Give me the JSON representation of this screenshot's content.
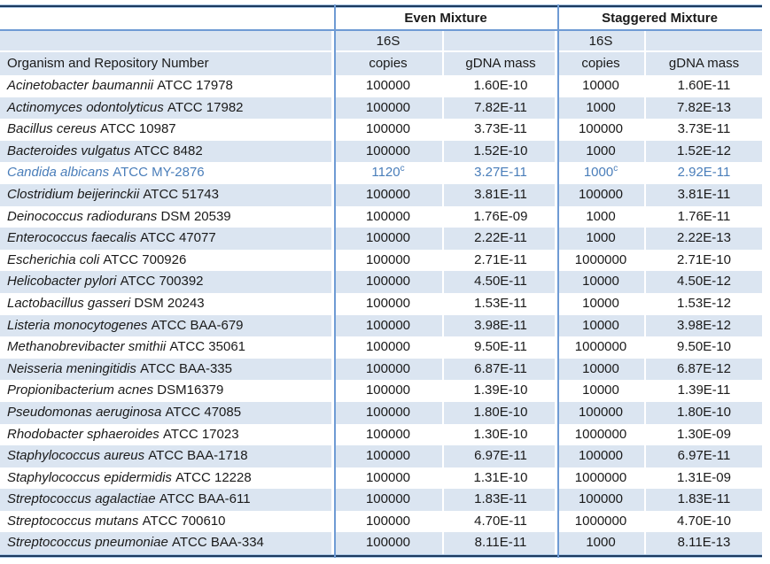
{
  "table": {
    "headers": {
      "even_mixture": "Even Mixture",
      "staggered_mixture": "Staggered Mixture",
      "s16": "16S",
      "copies": "copies",
      "gdna": "gDNA mass",
      "organism": "Organism and Repository Number"
    },
    "rows": [
      {
        "organism": "Acinetobacter baumannii",
        "repository": "ATCC 17978",
        "even_copies": "100000",
        "even_copies_note": "",
        "even_gdna": "1.60E-10",
        "stag_copies": "10000",
        "stag_copies_note": "",
        "stag_gdna": "1.60E-11",
        "highlight": false
      },
      {
        "organism": "Actinomyces odontolyticus",
        "repository": "ATCC 17982",
        "even_copies": "100000",
        "even_copies_note": "",
        "even_gdna": "7.82E-11",
        "stag_copies": "1000",
        "stag_copies_note": "",
        "stag_gdna": "7.82E-13",
        "highlight": false
      },
      {
        "organism": "Bacillus cereus",
        "repository": "ATCC 10987",
        "even_copies": "100000",
        "even_copies_note": "",
        "even_gdna": "3.73E-11",
        "stag_copies": "100000",
        "stag_copies_note": "",
        "stag_gdna": "3.73E-11",
        "highlight": false
      },
      {
        "organism": "Bacteroides vulgatus",
        "repository": "ATCC 8482",
        "even_copies": "100000",
        "even_copies_note": "",
        "even_gdna": "1.52E-10",
        "stag_copies": "1000",
        "stag_copies_note": "",
        "stag_gdna": "1.52E-12",
        "highlight": false
      },
      {
        "organism": "Candida albicans",
        "repository": "ATCC MY-2876",
        "even_copies": "1120",
        "even_copies_note": "c",
        "even_gdna": "3.27E-11",
        "stag_copies": "1000",
        "stag_copies_note": "c",
        "stag_gdna": "2.92E-11",
        "highlight": true
      },
      {
        "organism": "Clostridium beijerinckii",
        "repository": "ATCC 51743",
        "even_copies": "100000",
        "even_copies_note": "",
        "even_gdna": "3.81E-11",
        "stag_copies": "100000",
        "stag_copies_note": "",
        "stag_gdna": "3.81E-11",
        "highlight": false
      },
      {
        "organism": "Deinococcus radiodurans",
        "repository": "DSM 20539",
        "even_copies": "100000",
        "even_copies_note": "",
        "even_gdna": "1.76E-09",
        "stag_copies": "1000",
        "stag_copies_note": "",
        "stag_gdna": "1.76E-11",
        "highlight": false
      },
      {
        "organism": "Enterococcus faecalis",
        "repository": "ATCC 47077",
        "even_copies": "100000",
        "even_copies_note": "",
        "even_gdna": "2.22E-11",
        "stag_copies": "1000",
        "stag_copies_note": "",
        "stag_gdna": "2.22E-13",
        "highlight": false
      },
      {
        "organism": "Escherichia coli",
        "repository": "ATCC 700926",
        "even_copies": "100000",
        "even_copies_note": "",
        "even_gdna": "2.71E-11",
        "stag_copies": "1000000",
        "stag_copies_note": "",
        "stag_gdna": "2.71E-10",
        "highlight": false
      },
      {
        "organism": "Helicobacter pylori",
        "repository": "ATCC 700392",
        "even_copies": "100000",
        "even_copies_note": "",
        "even_gdna": "4.50E-11",
        "stag_copies": "10000",
        "stag_copies_note": "",
        "stag_gdna": "4.50E-12",
        "highlight": false
      },
      {
        "organism": "Lactobacillus gasseri",
        "repository": "DSM 20243",
        "even_copies": "100000",
        "even_copies_note": "",
        "even_gdna": "1.53E-11",
        "stag_copies": "10000",
        "stag_copies_note": "",
        "stag_gdna": "1.53E-12",
        "highlight": false
      },
      {
        "organism": "Listeria monocytogenes",
        "repository": "ATCC BAA-679",
        "even_copies": "100000",
        "even_copies_note": "",
        "even_gdna": "3.98E-11",
        "stag_copies": "10000",
        "stag_copies_note": "",
        "stag_gdna": "3.98E-12",
        "highlight": false
      },
      {
        "organism": "Methanobrevibacter smithii",
        "repository": "ATCC 35061",
        "even_copies": "100000",
        "even_copies_note": "",
        "even_gdna": "9.50E-11",
        "stag_copies": "1000000",
        "stag_copies_note": "",
        "stag_gdna": "9.50E-10",
        "highlight": false
      },
      {
        "organism": "Neisseria meningitidis",
        "repository": "ATCC BAA-335",
        "even_copies": "100000",
        "even_copies_note": "",
        "even_gdna": "6.87E-11",
        "stag_copies": "10000",
        "stag_copies_note": "",
        "stag_gdna": "6.87E-12",
        "highlight": false
      },
      {
        "organism": "Propionibacterium acnes",
        "repository": "DSM16379",
        "even_copies": "100000",
        "even_copies_note": "",
        "even_gdna": "1.39E-10",
        "stag_copies": "10000",
        "stag_copies_note": "",
        "stag_gdna": "1.39E-11",
        "highlight": false
      },
      {
        "organism": "Pseudomonas aeruginosa",
        "repository": "ATCC 47085",
        "even_copies": "100000",
        "even_copies_note": "",
        "even_gdna": "1.80E-10",
        "stag_copies": "100000",
        "stag_copies_note": "",
        "stag_gdna": "1.80E-10",
        "highlight": false
      },
      {
        "organism": "Rhodobacter sphaeroides",
        "repository": "ATCC 17023",
        "even_copies": "100000",
        "even_copies_note": "",
        "even_gdna": "1.30E-10",
        "stag_copies": "1000000",
        "stag_copies_note": "",
        "stag_gdna": "1.30E-09",
        "highlight": false
      },
      {
        "organism": "Staphylococcus aureus",
        "repository": "ATCC BAA-1718",
        "even_copies": "100000",
        "even_copies_note": "",
        "even_gdna": "6.97E-11",
        "stag_copies": "100000",
        "stag_copies_note": "",
        "stag_gdna": "6.97E-11",
        "highlight": false
      },
      {
        "organism": "Staphylococcus epidermidis",
        "repository": "ATCC 12228",
        "even_copies": "100000",
        "even_copies_note": "",
        "even_gdna": "1.31E-10",
        "stag_copies": "1000000",
        "stag_copies_note": "",
        "stag_gdna": "1.31E-09",
        "highlight": false
      },
      {
        "organism": "Streptococcus agalactiae",
        "repository": "ATCC BAA-611",
        "even_copies": "100000",
        "even_copies_note": "",
        "even_gdna": "1.83E-11",
        "stag_copies": "100000",
        "stag_copies_note": "",
        "stag_gdna": "1.83E-11",
        "highlight": false
      },
      {
        "organism": "Streptococcus mutans",
        "repository": "ATCC 700610",
        "even_copies": "100000",
        "even_copies_note": "",
        "even_gdna": "4.70E-11",
        "stag_copies": "1000000",
        "stag_copies_note": "",
        "stag_gdna": "4.70E-10",
        "highlight": false
      },
      {
        "organism": "Streptococcus pneumoniae",
        "repository": "ATCC BAA-334",
        "even_copies": "100000",
        "even_copies_note": "",
        "even_gdna": "8.11E-11",
        "stag_copies": "1000",
        "stag_copies_note": "",
        "stag_gdna": "8.11E-13",
        "highlight": false
      }
    ]
  },
  "colors": {
    "band": "#dbe5f1",
    "separator": "#6f9bd4",
    "dark_border": "#1c3a5f",
    "dark_border_edge": "#a9c5e2",
    "highlight_text": "#4a7eba"
  }
}
